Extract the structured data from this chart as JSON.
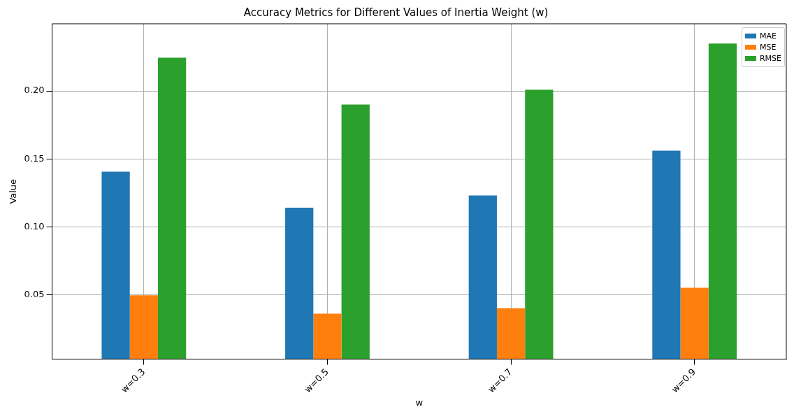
{
  "chart_data": {
    "type": "bar",
    "title": "Accuracy Metrics for Different Values of Inertia Weight (w)",
    "xlabel": "w",
    "ylabel": "Value",
    "categories": [
      "w=0.3",
      "w=0.5",
      "w=0.7",
      "w=0.9"
    ],
    "series": [
      {
        "name": "MAE",
        "color": "#1f77b4",
        "values": [
          0.1405,
          0.114,
          0.123,
          0.156
        ]
      },
      {
        "name": "MSE",
        "color": "#ff7f0e",
        "values": [
          0.0495,
          0.036,
          0.04,
          0.055
        ]
      },
      {
        "name": "RMSE",
        "color": "#2ca02c",
        "values": [
          0.2245,
          0.19,
          0.201,
          0.235
        ]
      }
    ],
    "ylim": [
      0.0025,
      0.2495
    ],
    "yticks": [
      {
        "value": 0.05,
        "label": "0.05"
      },
      {
        "value": 0.1,
        "label": "0.10"
      },
      {
        "value": 0.15,
        "label": "0.15"
      },
      {
        "value": 0.2,
        "label": "0.20"
      }
    ],
    "grid": true,
    "legend": "top right"
  }
}
